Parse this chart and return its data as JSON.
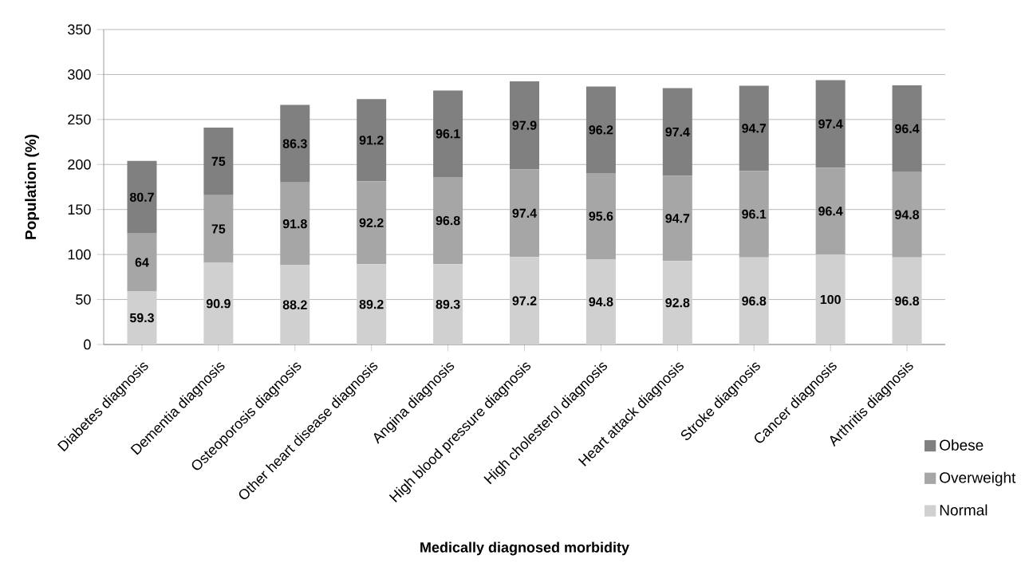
{
  "chart_data": {
    "type": "bar",
    "stacked": true,
    "xlabel": "Medically diagnosed morbidity",
    "ylabel": "Population (%)",
    "categories": [
      "Diabetes diagnosis",
      "Dementia diagnosis",
      "Osteoporosis diagnosis",
      "Other heart disease diagnosis",
      "Angina diagnosis",
      "High blood pressure diagnosis",
      "High cholesterol diagnosis",
      "Heart attack diagnosis",
      "Stroke diagnosis",
      "Cancer diagnosis",
      "Arthritis diagnosis"
    ],
    "series": [
      {
        "name": "Normal",
        "color": "#d0d0d0",
        "values": [
          59.3,
          90.9,
          88.2,
          89.2,
          89.3,
          97.2,
          94.8,
          92.8,
          96.8,
          100,
          96.8
        ]
      },
      {
        "name": "Overweight",
        "color": "#a6a6a6",
        "values": [
          64,
          75,
          91.8,
          92.2,
          96.8,
          97.4,
          95.6,
          94.7,
          96.1,
          96.4,
          94.8
        ]
      },
      {
        "name": "Obese",
        "color": "#808080",
        "values": [
          80.7,
          75,
          86.3,
          91.2,
          96.1,
          97.9,
          96.2,
          97.4,
          94.7,
          97.4,
          96.4
        ]
      }
    ],
    "ylim": [
      0,
      350
    ],
    "yticks": [
      0,
      50,
      100,
      150,
      200,
      250,
      300,
      350
    ],
    "grid": "y",
    "legend": "bottom right",
    "data_labels": true
  }
}
